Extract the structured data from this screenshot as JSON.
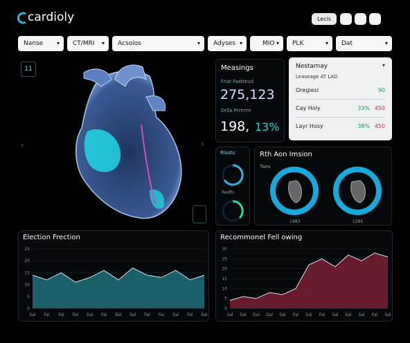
{
  "header": {
    "logo": "cardioly",
    "button": "Lecis"
  },
  "filters": [
    "Nanse",
    "CT/MRI",
    "Acsoios",
    "Adyses",
    "MIO",
    "PLK",
    "Dat"
  ],
  "heart_panel": {
    "label": "11"
  },
  "metrics": {
    "title": "Measings",
    "label1": "Fnst Fastteud",
    "value1": "275,123",
    "label2": "Drlla Prrtrrm",
    "value2": "198,",
    "value3": "13%"
  },
  "dropdown": {
    "title": "Nestarnay",
    "subtitle": "Leaseage AT LAD",
    "rows": [
      [
        "Oregiesl",
        "",
        "90"
      ],
      [
        "Cay Holy",
        "33%",
        "450"
      ],
      [
        "Layr Hosy",
        "38%",
        "450"
      ]
    ]
  },
  "gauges": {
    "title": "Rlasts",
    "label": "Resfts"
  },
  "rotation": {
    "title": "Rth Aon Imsion",
    "label": "Taes",
    "captions": [
      "1983",
      "1285"
    ]
  },
  "chart_data": [
    {
      "type": "area",
      "title": "Election Frection",
      "color": "#1f6f7a",
      "categories": [
        "Sal",
        "Fai",
        "Fal",
        "Fal",
        "Dal",
        "Fal",
        "Bal",
        "Sal",
        "Fal",
        "Fai",
        "Sal",
        "Fal",
        "Sal"
      ],
      "values": [
        14,
        12,
        15,
        11,
        13,
        16,
        12,
        17,
        14,
        13,
        16,
        12,
        14
      ],
      "ylim": [
        0,
        25
      ],
      "yticks": [
        0,
        5,
        10,
        15,
        20,
        25
      ],
      "grid": true
    },
    {
      "type": "area",
      "title": "Recommonel Fell owing",
      "color": "#7a1f33",
      "categories": [
        "Sal",
        "Sal",
        "Dal",
        "Dal",
        "Sal",
        "Fal",
        "Sal",
        "Fal",
        "Sal",
        "Sal",
        "Sal",
        "Fal",
        "Sal"
      ],
      "values": [
        4,
        6,
        5,
        8,
        7,
        10,
        22,
        25,
        21,
        27,
        24,
        28,
        26
      ],
      "ylim": [
        0,
        30
      ],
      "yticks": [
        0,
        5,
        10,
        15,
        20,
        25,
        30
      ],
      "grid": true
    }
  ]
}
